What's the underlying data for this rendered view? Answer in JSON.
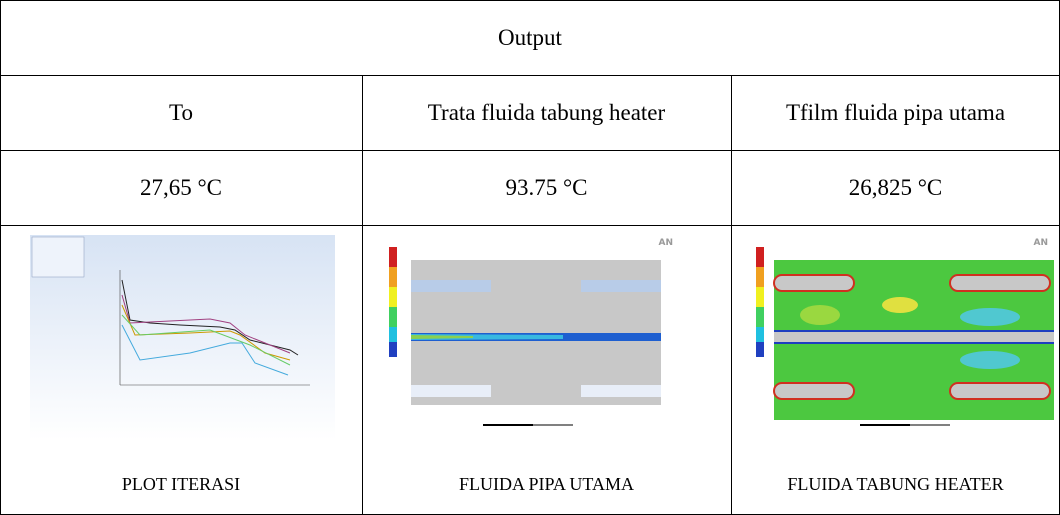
{
  "table": {
    "header": "Output",
    "columns": [
      "To",
      "Trata fluida tabung heater",
      "Tfilm fluida pipa utama"
    ],
    "values": [
      "27,65 °C",
      "93.75 °C",
      "26,825 °C"
    ],
    "captions": [
      "PLOT ITERASI",
      "FLUIDA PIPA UTAMA",
      "FLUIDA TABUNG HEATER"
    ]
  }
}
